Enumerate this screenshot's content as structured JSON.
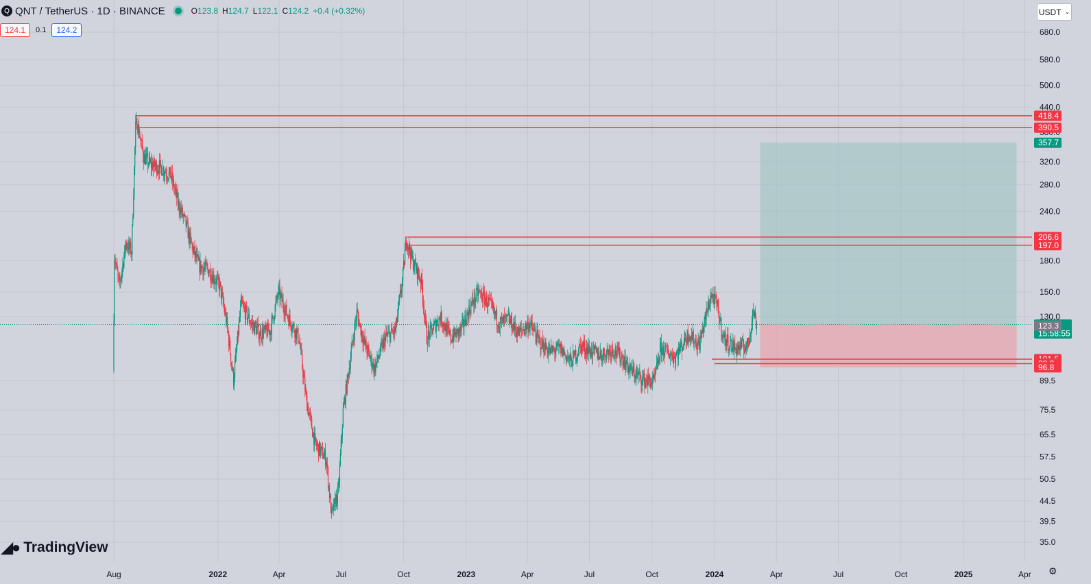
{
  "header": {
    "symbol_icon": "quant-logo-icon",
    "title": "QNT / TetherUS · 1D · BINANCE",
    "open_label": "O",
    "open": "123.8",
    "high_label": "H",
    "high": "124.7",
    "low_label": "L",
    "low": "122.1",
    "close_label": "C",
    "close": "124.2",
    "change": "+0.4 (+0.32%)"
  },
  "trade": {
    "sell": "124.1",
    "spread": "0.1",
    "buy": "124.2"
  },
  "currency": {
    "label": "USDT",
    "icon": "chevron-down-icon"
  },
  "brand": {
    "name": "TradingView",
    "icon": "tradingview-logo-icon"
  },
  "colors": {
    "up": "#089981",
    "down": "#f23645",
    "background": "#d1d4dc",
    "profit_zone": "#9fc3c3",
    "loss_zone": "#e8a5ad"
  },
  "chart_data": {
    "type": "candlestick",
    "y_scale": "log",
    "y_ticks": [
      "680.0",
      "580.0",
      "500.0",
      "440.0",
      "380.0",
      "320.0",
      "280.0",
      "240.0",
      "180.0",
      "150.0",
      "130.0",
      "89.5",
      "75.5",
      "65.5",
      "57.5",
      "50.5",
      "44.5",
      "39.5",
      "35.0"
    ],
    "x_ticks": [
      "Aug",
      "2022",
      "Apr",
      "Jul",
      "Oct",
      "2023",
      "Apr",
      "Jul",
      "Oct",
      "2024",
      "Apr",
      "Jul",
      "Oct",
      "2025",
      "Apr"
    ],
    "horizontal_lines": [
      418.4,
      390.5,
      206.6,
      197.0,
      101.5,
      98.9
    ],
    "price_tags": [
      {
        "value": "418.4",
        "color": "#f23645"
      },
      {
        "value": "390.5",
        "color": "#f23645"
      },
      {
        "value": "357.7",
        "color": "#089981"
      },
      {
        "value": "206.6",
        "color": "#f23645"
      },
      {
        "value": "197.0",
        "color": "#f23645"
      },
      {
        "value": "124.2",
        "color": "#089981",
        "sub": "15:58:55"
      },
      {
        "value": "123.3",
        "color": "#787b86"
      },
      {
        "value": "101.5",
        "color": "#f23645"
      },
      {
        "value": "98.9",
        "color": "#f23645"
      },
      {
        "value": "96.8",
        "color": "#f23645"
      }
    ],
    "position": {
      "entry": 124.2,
      "target": 357.7,
      "stop": 96.8
    },
    "last_price": 124.2,
    "anchors": [
      [
        "2021-08-01",
        95
      ],
      [
        "2021-08-03",
        185
      ],
      [
        "2021-08-10",
        155
      ],
      [
        "2021-08-20",
        200
      ],
      [
        "2021-08-28",
        190
      ],
      [
        "2021-09-03",
        390
      ],
      [
        "2021-09-05",
        405
      ],
      [
        "2021-09-15",
        330
      ],
      [
        "2021-09-25",
        315
      ],
      [
        "2021-10-10",
        310
      ],
      [
        "2021-10-25",
        295
      ],
      [
        "2021-11-05",
        250
      ],
      [
        "2021-11-15",
        225
      ],
      [
        "2021-11-25",
        195
      ],
      [
        "2021-12-05",
        175
      ],
      [
        "2021-12-20",
        170
      ],
      [
        "2022-01-05",
        155
      ],
      [
        "2022-01-15",
        125
      ],
      [
        "2022-01-25",
        90
      ],
      [
        "2022-02-05",
        140
      ],
      [
        "2022-02-20",
        125
      ],
      [
        "2022-03-05",
        118
      ],
      [
        "2022-03-20",
        120
      ],
      [
        "2022-04-01",
        150
      ],
      [
        "2022-04-15",
        130
      ],
      [
        "2022-05-01",
        115
      ],
      [
        "2022-05-12",
        80
      ],
      [
        "2022-05-25",
        62
      ],
      [
        "2022-06-10",
        57
      ],
      [
        "2022-06-18",
        41
      ],
      [
        "2022-06-28",
        47
      ],
      [
        "2022-07-05",
        75
      ],
      [
        "2022-07-15",
        100
      ],
      [
        "2022-07-25",
        133
      ],
      [
        "2022-08-05",
        112
      ],
      [
        "2022-08-20",
        96
      ],
      [
        "2022-09-05",
        115
      ],
      [
        "2022-09-20",
        120
      ],
      [
        "2022-10-01",
        165
      ],
      [
        "2022-10-06",
        205
      ],
      [
        "2022-10-15",
        180
      ],
      [
        "2022-10-28",
        160
      ],
      [
        "2022-11-05",
        115
      ],
      [
        "2022-11-15",
        122
      ],
      [
        "2022-11-25",
        130
      ],
      [
        "2022-12-10",
        115
      ],
      [
        "2022-12-25",
        120
      ],
      [
        "2023-01-10",
        140
      ],
      [
        "2023-01-20",
        150
      ],
      [
        "2023-02-05",
        140
      ],
      [
        "2023-02-20",
        125
      ],
      [
        "2023-03-05",
        128
      ],
      [
        "2023-03-20",
        118
      ],
      [
        "2023-04-05",
        125
      ],
      [
        "2023-04-20",
        112
      ],
      [
        "2023-05-05",
        106
      ],
      [
        "2023-05-20",
        108
      ],
      [
        "2023-06-05",
        100
      ],
      [
        "2023-06-20",
        110
      ],
      [
        "2023-07-05",
        106
      ],
      [
        "2023-07-20",
        104
      ],
      [
        "2023-08-05",
        108
      ],
      [
        "2023-08-20",
        102
      ],
      [
        "2023-09-01",
        95
      ],
      [
        "2023-09-20",
        90
      ],
      [
        "2023-10-05",
        89
      ],
      [
        "2023-10-15",
        108
      ],
      [
        "2023-11-05",
        103
      ],
      [
        "2023-11-25",
        118
      ],
      [
        "2023-12-10",
        110
      ],
      [
        "2023-12-28",
        148
      ],
      [
        "2024-01-05",
        140
      ],
      [
        "2024-01-15",
        115
      ],
      [
        "2024-02-01",
        108
      ],
      [
        "2024-02-20",
        110
      ],
      [
        "2024-02-28",
        135
      ],
      [
        "2024-03-04",
        124
      ]
    ]
  }
}
